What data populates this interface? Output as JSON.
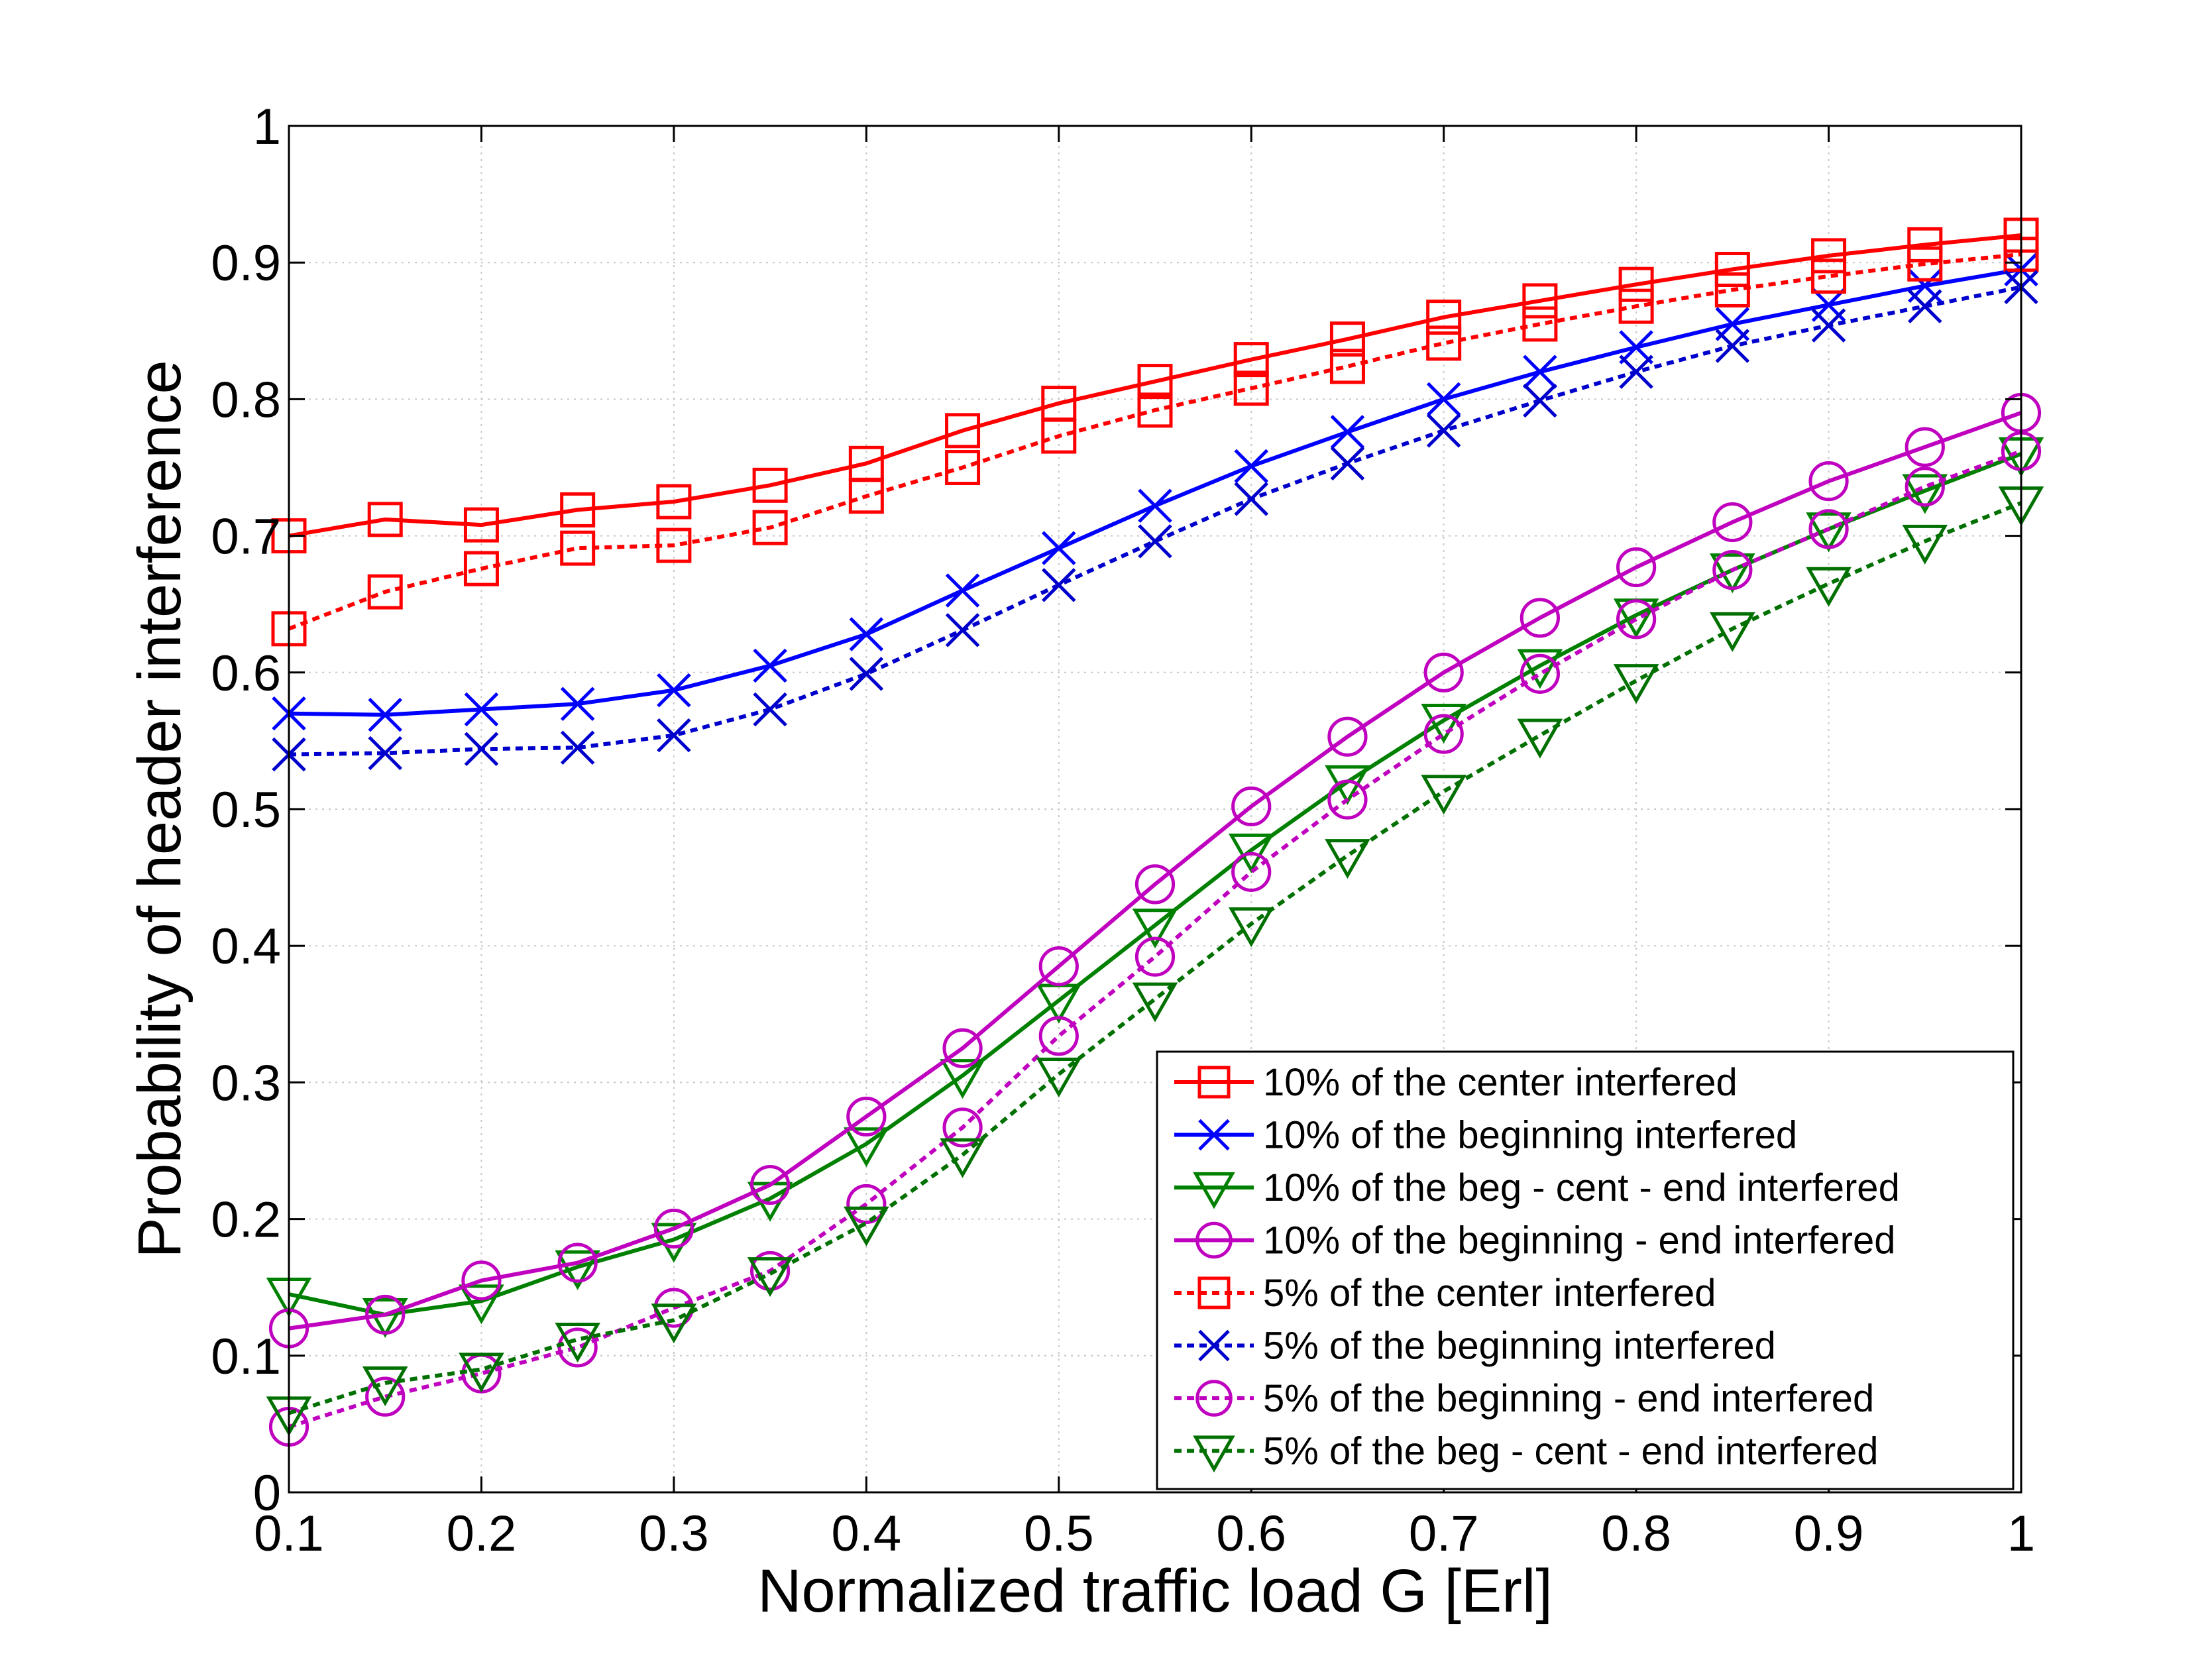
{
  "chart_data": {
    "type": "line",
    "title": "",
    "xlabel": "Normalized traffic load G [Erl]",
    "ylabel": "Probability of header interference",
    "xlim": [
      0.1,
      1
    ],
    "ylim": [
      0,
      1
    ],
    "xticks": [
      0.1,
      0.2,
      0.3,
      0.4,
      0.5,
      0.6,
      0.7,
      0.8,
      0.9,
      1
    ],
    "xtick_labels": [
      "0.1",
      "0.2",
      "0.3",
      "0.4",
      "0.5",
      "0.6",
      "0.7",
      "0.8",
      "0.9",
      "1"
    ],
    "yticks": [
      0,
      0.1,
      0.2,
      0.3,
      0.4,
      0.5,
      0.6,
      0.7,
      0.8,
      0.9,
      1
    ],
    "ytick_labels": [
      "0",
      "0.1",
      "0.2",
      "0.3",
      "0.4",
      "0.5",
      "0.6",
      "0.7",
      "0.8",
      "0.9",
      "1"
    ],
    "grid": true,
    "legend_position": "bottom-right",
    "x": [
      0.1,
      0.15,
      0.2,
      0.25,
      0.3,
      0.35,
      0.4,
      0.45,
      0.5,
      0.55,
      0.6,
      0.65,
      0.7,
      0.75,
      0.8,
      0.85,
      0.9,
      0.95,
      1.0
    ],
    "series": [
      {
        "name": "10% of the center interfered",
        "color": "#ff0000",
        "line": "solid",
        "marker": "square",
        "values": [
          0.7,
          0.712,
          0.708,
          0.719,
          0.725,
          0.737,
          0.753,
          0.777,
          0.797,
          0.813,
          0.829,
          0.844,
          0.86,
          0.872,
          0.884,
          0.895,
          0.905,
          0.913,
          0.92
        ]
      },
      {
        "name": "10% of the beginning interfered",
        "color": "#0000ff",
        "line": "solid",
        "marker": "x",
        "values": [
          0.57,
          0.569,
          0.573,
          0.577,
          0.587,
          0.605,
          0.628,
          0.66,
          0.691,
          0.722,
          0.751,
          0.776,
          0.8,
          0.82,
          0.838,
          0.855,
          0.869,
          0.883,
          0.895
        ]
      },
      {
        "name": "10% of the beg - cent - end interfered",
        "color": "#008000",
        "line": "solid",
        "marker": "triangle-down",
        "values": [
          0.145,
          0.13,
          0.14,
          0.165,
          0.185,
          0.215,
          0.255,
          0.305,
          0.36,
          0.415,
          0.47,
          0.52,
          0.565,
          0.605,
          0.642,
          0.675,
          0.705,
          0.733,
          0.76
        ]
      },
      {
        "name": "10% of the beginning - end interfered",
        "color": "#bf00bf",
        "line": "solid",
        "marker": "circle",
        "values": [
          0.12,
          0.13,
          0.155,
          0.168,
          0.193,
          0.225,
          0.275,
          0.325,
          0.385,
          0.445,
          0.502,
          0.553,
          0.6,
          0.64,
          0.677,
          0.71,
          0.74,
          0.765,
          0.79
        ]
      },
      {
        "name": "5% of the center interfered",
        "color": "#ff0000",
        "line": "dotted",
        "marker": "square",
        "values": [
          0.632,
          0.659,
          0.676,
          0.691,
          0.693,
          0.706,
          0.729,
          0.75,
          0.773,
          0.792,
          0.808,
          0.824,
          0.841,
          0.855,
          0.868,
          0.88,
          0.89,
          0.899,
          0.906
        ]
      },
      {
        "name": "5% of the beginning interfered",
        "color": "#0000cc",
        "line": "dotted",
        "marker": "x",
        "values": [
          0.54,
          0.541,
          0.544,
          0.545,
          0.554,
          0.573,
          0.599,
          0.631,
          0.664,
          0.696,
          0.727,
          0.753,
          0.777,
          0.799,
          0.82,
          0.839,
          0.854,
          0.868,
          0.882
        ]
      },
      {
        "name": "5% of the beginning - end interfered",
        "color": "#bf00bf",
        "line": "dotted",
        "marker": "circle",
        "values": [
          0.048,
          0.07,
          0.087,
          0.106,
          0.135,
          0.162,
          0.211,
          0.267,
          0.334,
          0.392,
          0.454,
          0.507,
          0.555,
          0.599,
          0.639,
          0.675,
          0.705,
          0.736,
          0.762
        ]
      },
      {
        "name": "5% of the beg - cent - end interfered",
        "color": "#007000",
        "line": "dotted",
        "marker": "triangle-down",
        "values": [
          0.058,
          0.08,
          0.09,
          0.112,
          0.126,
          0.16,
          0.197,
          0.247,
          0.306,
          0.361,
          0.416,
          0.466,
          0.513,
          0.554,
          0.594,
          0.632,
          0.665,
          0.696,
          0.724
        ]
      }
    ]
  }
}
